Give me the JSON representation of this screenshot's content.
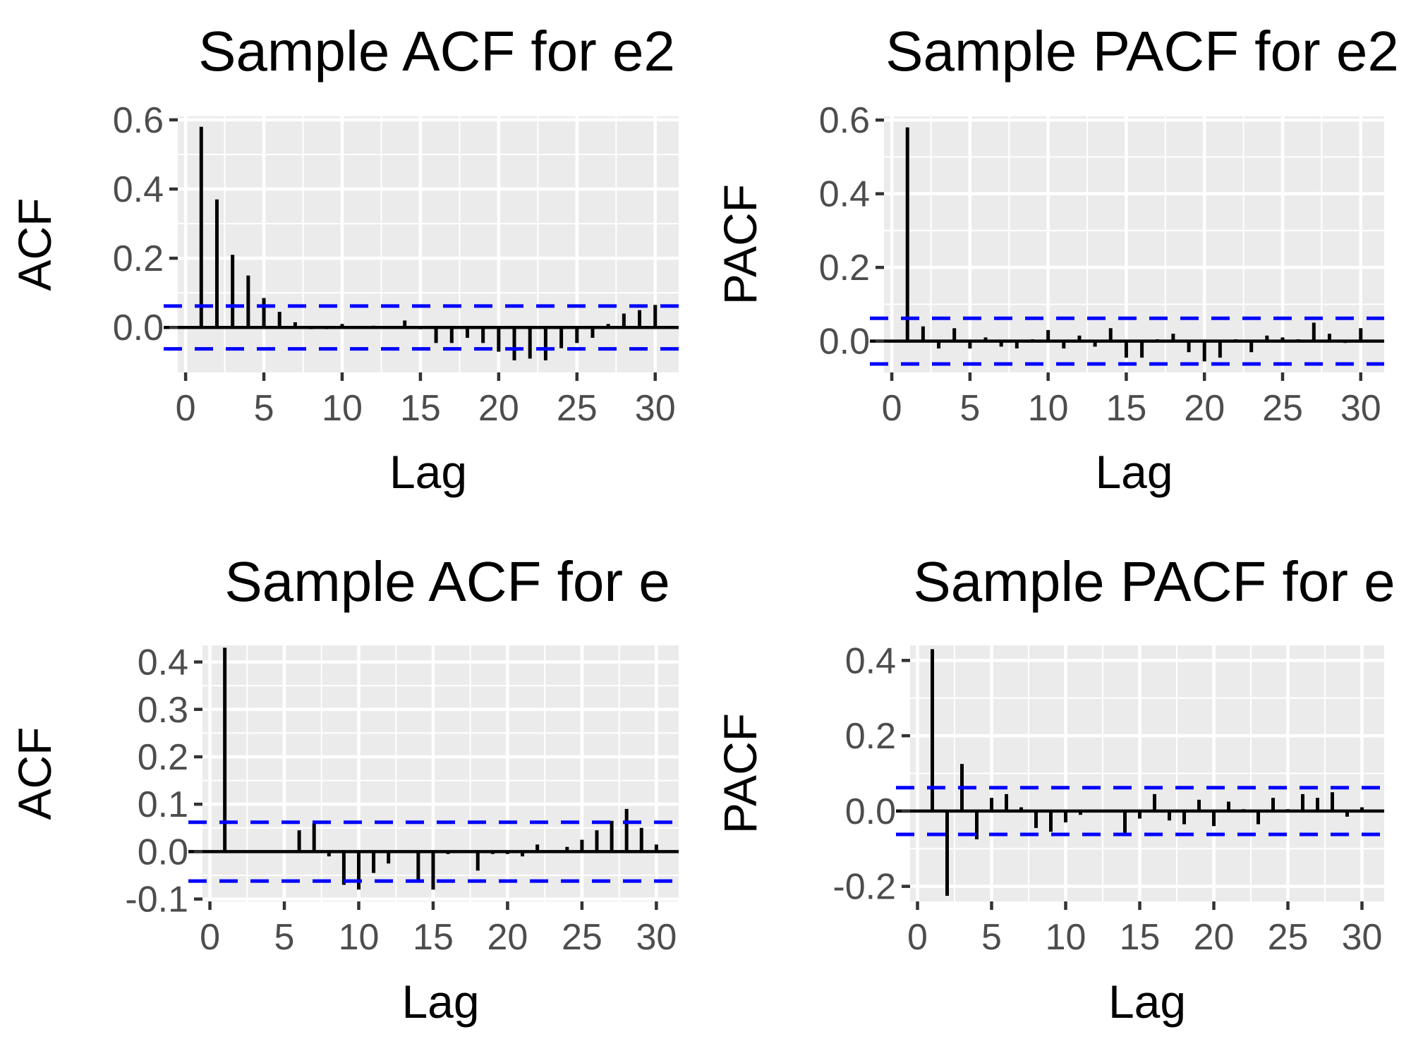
{
  "chart_data": [
    {
      "type": "bar",
      "title": "Sample ACF for e2",
      "xlabel": "Lag",
      "ylabel": "ACF",
      "xlim": [
        -0.5,
        31.5
      ],
      "ylim": [
        -0.13,
        0.61
      ],
      "xticks": [
        0,
        5,
        10,
        15,
        20,
        25,
        30
      ],
      "xtick_labels": [
        "0",
        "5",
        "10",
        "15",
        "20",
        "25",
        "30"
      ],
      "yticks": [
        0.0,
        0.2,
        0.4,
        0.6
      ],
      "ytick_labels": [
        "0.0",
        "0.2",
        "0.4",
        "0.6"
      ],
      "conf_bound": 0.062,
      "grid": true,
      "bar_color": "#000000",
      "bound_color": "#0000ff",
      "x": [
        1,
        2,
        3,
        4,
        5,
        6,
        7,
        8,
        9,
        10,
        11,
        12,
        13,
        14,
        15,
        16,
        17,
        18,
        19,
        20,
        21,
        22,
        23,
        24,
        25,
        26,
        27,
        28,
        29,
        30
      ],
      "values": [
        0.58,
        0.37,
        0.21,
        0.15,
        0.085,
        0.045,
        0.015,
        -0.005,
        -0.005,
        0.01,
        0.0,
        0.005,
        0.0,
        0.02,
        -0.005,
        -0.045,
        -0.045,
        -0.03,
        -0.045,
        -0.07,
        -0.095,
        -0.09,
        -0.095,
        -0.06,
        -0.045,
        -0.03,
        0.01,
        0.04,
        0.05,
        0.065
      ]
    },
    {
      "type": "bar",
      "title": "Sample PACF for e2",
      "xlabel": "Lag",
      "ylabel": "PACF",
      "xlim": [
        -0.5,
        31.5
      ],
      "ylim": [
        -0.085,
        0.61
      ],
      "xticks": [
        0,
        5,
        10,
        15,
        20,
        25,
        30
      ],
      "xtick_labels": [
        "0",
        "5",
        "10",
        "15",
        "20",
        "25",
        "30"
      ],
      "yticks": [
        0.0,
        0.2,
        0.4,
        0.6
      ],
      "ytick_labels": [
        "0.0",
        "0.2",
        "0.4",
        "0.6"
      ],
      "conf_bound": 0.062,
      "grid": true,
      "bar_color": "#000000",
      "bound_color": "#0000ff",
      "x": [
        1,
        2,
        3,
        4,
        5,
        6,
        7,
        8,
        9,
        10,
        11,
        12,
        13,
        14,
        15,
        16,
        17,
        18,
        19,
        20,
        21,
        22,
        23,
        24,
        25,
        26,
        27,
        28,
        29,
        30
      ],
      "values": [
        0.58,
        0.04,
        -0.02,
        0.035,
        -0.02,
        0.01,
        -0.015,
        -0.02,
        0.005,
        0.03,
        -0.02,
        0.015,
        -0.015,
        0.035,
        -0.045,
        -0.045,
        0.005,
        0.02,
        -0.03,
        -0.055,
        -0.045,
        0.005,
        -0.03,
        0.015,
        0.01,
        0.005,
        0.05,
        0.02,
        -0.005,
        0.035
      ]
    },
    {
      "type": "bar",
      "title": "Sample ACF for e",
      "xlabel": "Lag",
      "ylabel": "ACF",
      "xlim": [
        -0.5,
        31.5
      ],
      "ylim": [
        -0.105,
        0.435
      ],
      "xticks": [
        0,
        5,
        10,
        15,
        20,
        25,
        30
      ],
      "xtick_labels": [
        "0",
        "5",
        "10",
        "15",
        "20",
        "25",
        "30"
      ],
      "yticks": [
        -0.1,
        0.0,
        0.1,
        0.2,
        0.3,
        0.4
      ],
      "ytick_labels": [
        "-0.1",
        "0.0",
        "0.1",
        "0.2",
        "0.3",
        "0.4"
      ],
      "conf_bound": 0.062,
      "grid": true,
      "bar_color": "#000000",
      "bound_color": "#0000ff",
      "x": [
        1,
        2,
        3,
        4,
        5,
        6,
        7,
        8,
        9,
        10,
        11,
        12,
        13,
        14,
        15,
        16,
        17,
        18,
        19,
        20,
        21,
        22,
        23,
        24,
        25,
        26,
        27,
        28,
        29,
        30
      ],
      "values": [
        0.43,
        0.0,
        0.0,
        0.0,
        -0.003,
        0.045,
        0.06,
        -0.01,
        -0.07,
        -0.08,
        -0.045,
        -0.025,
        0.0,
        -0.06,
        -0.08,
        -0.005,
        0.0,
        -0.04,
        -0.005,
        -0.005,
        -0.01,
        0.015,
        0.0,
        0.01,
        0.025,
        0.045,
        0.065,
        0.09,
        0.05,
        0.015
      ]
    },
    {
      "type": "bar",
      "title": "Sample PACF for e",
      "xlabel": "Lag",
      "ylabel": "PACF",
      "xlim": [
        -0.5,
        31.5
      ],
      "ylim": [
        -0.24,
        0.44
      ],
      "xticks": [
        0,
        5,
        10,
        15,
        20,
        25,
        30
      ],
      "xtick_labels": [
        "0",
        "5",
        "10",
        "15",
        "20",
        "25",
        "30"
      ],
      "yticks": [
        -0.2,
        0.0,
        0.2,
        0.4
      ],
      "ytick_labels": [
        "-0.2",
        "0.0",
        "0.2",
        "0.4"
      ],
      "conf_bound": 0.062,
      "grid": true,
      "bar_color": "#000000",
      "bound_color": "#0000ff",
      "x": [
        1,
        2,
        3,
        4,
        5,
        6,
        7,
        8,
        9,
        10,
        11,
        12,
        13,
        14,
        15,
        16,
        17,
        18,
        19,
        20,
        21,
        22,
        23,
        24,
        25,
        26,
        27,
        28,
        29,
        30
      ],
      "values": [
        0.43,
        -0.225,
        0.125,
        -0.075,
        0.035,
        0.045,
        0.01,
        -0.045,
        -0.055,
        -0.03,
        -0.01,
        0.0,
        0.0,
        -0.065,
        -0.02,
        0.045,
        -0.025,
        -0.035,
        0.03,
        -0.04,
        0.025,
        0.005,
        -0.035,
        0.035,
        0.005,
        0.045,
        0.035,
        0.05,
        -0.015,
        0.01
      ]
    }
  ]
}
